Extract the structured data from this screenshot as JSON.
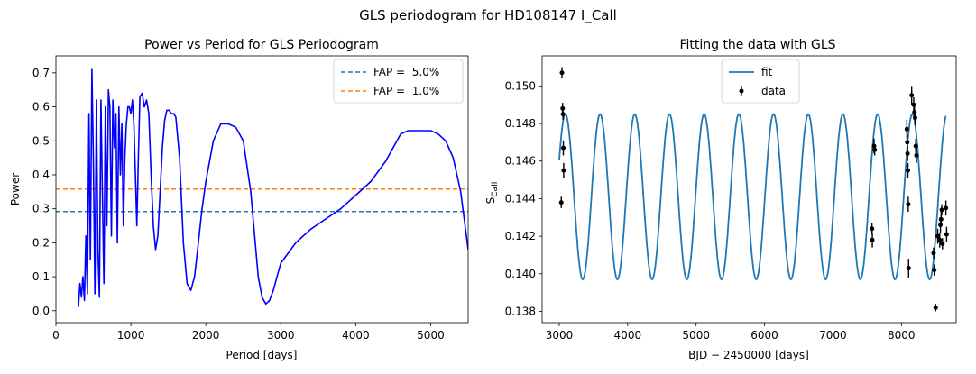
{
  "suptitle": "GLS periodogram for HD108147 I_Call",
  "colors": {
    "power": "#0000ff",
    "fap5": "#1f77b4",
    "fap1": "#ff7f0e",
    "fit": "#1f77b4",
    "data": "#000000"
  },
  "chart_data": [
    {
      "type": "line",
      "title": "Power vs Period for GLS Periodogram",
      "xlabel": "Period [days]",
      "ylabel": "Power",
      "xlim": [
        0,
        5500
      ],
      "ylim": [
        -0.035,
        0.75
      ],
      "xticks": [
        0,
        1000,
        2000,
        3000,
        4000,
        5000
      ],
      "yticks": [
        0.0,
        0.1,
        0.2,
        0.3,
        0.4,
        0.5,
        0.6,
        0.7
      ],
      "legend_position": "top-right",
      "hlines": [
        {
          "name": "FAP =  5.0%",
          "y": 0.292
        },
        {
          "name": "FAP =  1.0%",
          "y": 0.358
        }
      ],
      "series": [
        {
          "x": [
            300,
            320,
            340,
            360,
            380,
            400,
            420,
            440,
            460,
            480,
            500,
            520,
            540,
            560,
            580,
            600,
            620,
            640,
            660,
            680,
            700,
            720,
            740,
            760,
            780,
            800,
            820,
            840,
            860,
            880,
            900,
            920,
            940,
            960,
            980,
            1000,
            1020,
            1040,
            1060,
            1080,
            1100,
            1120,
            1150,
            1180,
            1210,
            1240,
            1270,
            1300,
            1330,
            1360,
            1390,
            1420,
            1450,
            1480,
            1510,
            1540,
            1570,
            1600,
            1650,
            1700,
            1750,
            1800,
            1850,
            1900,
            1950,
            2000,
            2100,
            2200,
            2300,
            2400,
            2500,
            2600,
            2700,
            2750,
            2800,
            2850,
            2900,
            2950,
            3000,
            3200,
            3400,
            3600,
            3800,
            4000,
            4200,
            4400,
            4500,
            4600,
            4700,
            4800,
            4900,
            5000,
            5100,
            5200,
            5300,
            5400,
            5500
          ],
          "y": [
            0.01,
            0.08,
            0.04,
            0.1,
            0.03,
            0.22,
            0.05,
            0.58,
            0.15,
            0.71,
            0.45,
            0.05,
            0.62,
            0.18,
            0.04,
            0.62,
            0.35,
            0.08,
            0.6,
            0.25,
            0.65,
            0.6,
            0.22,
            0.62,
            0.48,
            0.58,
            0.2,
            0.6,
            0.4,
            0.55,
            0.25,
            0.45,
            0.55,
            0.6,
            0.6,
            0.58,
            0.62,
            0.55,
            0.4,
            0.25,
            0.45,
            0.63,
            0.64,
            0.6,
            0.62,
            0.58,
            0.4,
            0.25,
            0.18,
            0.22,
            0.35,
            0.48,
            0.56,
            0.59,
            0.59,
            0.58,
            0.58,
            0.57,
            0.45,
            0.2,
            0.08,
            0.06,
            0.1,
            0.2,
            0.3,
            0.38,
            0.5,
            0.55,
            0.55,
            0.54,
            0.5,
            0.35,
            0.1,
            0.04,
            0.02,
            0.03,
            0.06,
            0.1,
            0.14,
            0.2,
            0.24,
            0.27,
            0.3,
            0.34,
            0.38,
            0.44,
            0.48,
            0.52,
            0.53,
            0.53,
            0.53,
            0.53,
            0.52,
            0.5,
            0.45,
            0.35,
            0.18
          ]
        }
      ]
    },
    {
      "type": "scatter",
      "title": "Fitting the data with GLS",
      "xlabel": "BJD − 2450000 [days]",
      "ylabel_main": "S",
      "ylabel_sub": "CaII",
      "xlim": [
        2750,
        8800
      ],
      "ylim": [
        0.1374,
        0.1516
      ],
      "xticks": [
        3000,
        4000,
        5000,
        6000,
        7000,
        8000
      ],
      "yticks": [
        0.138,
        0.14,
        0.142,
        0.144,
        0.146,
        0.148,
        0.15
      ],
      "legend_position": "top-center",
      "fit": {
        "name": "fit",
        "x_start": 3000,
        "x_end": 8650,
        "mean": 0.1441,
        "amplitude": 0.0044,
        "period": 507,
        "phase_x": 3090
      },
      "data_series": {
        "name": "data",
        "points": [
          {
            "x": 3030,
            "y": 0.1438,
            "e": 0.0003
          },
          {
            "x": 3040,
            "y": 0.1507,
            "e": 0.0003
          },
          {
            "x": 3050,
            "y": 0.1488,
            "e": 0.0003
          },
          {
            "x": 3055,
            "y": 0.1485,
            "e": 0.0003
          },
          {
            "x": 3060,
            "y": 0.1467,
            "e": 0.0004
          },
          {
            "x": 3065,
            "y": 0.1455,
            "e": 0.0004
          },
          {
            "x": 7570,
            "y": 0.1424,
            "e": 0.0003
          },
          {
            "x": 7575,
            "y": 0.1418,
            "e": 0.0004
          },
          {
            "x": 7600,
            "y": 0.1468,
            "e": 0.0004
          },
          {
            "x": 7610,
            "y": 0.1466,
            "e": 0.0003
          },
          {
            "x": 8080,
            "y": 0.1477,
            "e": 0.0005
          },
          {
            "x": 8085,
            "y": 0.147,
            "e": 0.0004
          },
          {
            "x": 8090,
            "y": 0.1464,
            "e": 0.0004
          },
          {
            "x": 8095,
            "y": 0.1455,
            "e": 0.0004
          },
          {
            "x": 8100,
            "y": 0.1437,
            "e": 0.0004
          },
          {
            "x": 8105,
            "y": 0.1403,
            "e": 0.0005
          },
          {
            "x": 8150,
            "y": 0.1495,
            "e": 0.0005
          },
          {
            "x": 8180,
            "y": 0.149,
            "e": 0.0004
          },
          {
            "x": 8190,
            "y": 0.1486,
            "e": 0.0004
          },
          {
            "x": 8200,
            "y": 0.1483,
            "e": 0.0004
          },
          {
            "x": 8210,
            "y": 0.1468,
            "e": 0.0004
          },
          {
            "x": 8220,
            "y": 0.1463,
            "e": 0.0004
          },
          {
            "x": 8470,
            "y": 0.1411,
            "e": 0.0003
          },
          {
            "x": 8480,
            "y": 0.1402,
            "e": 0.0003
          },
          {
            "x": 8500,
            "y": 0.1382,
            "e": 0.0002
          },
          {
            "x": 8530,
            "y": 0.142,
            "e": 0.0004
          },
          {
            "x": 8560,
            "y": 0.1418,
            "e": 0.0004
          },
          {
            "x": 8570,
            "y": 0.1426,
            "e": 0.0004
          },
          {
            "x": 8580,
            "y": 0.1429,
            "e": 0.0004
          },
          {
            "x": 8590,
            "y": 0.1434,
            "e": 0.0003
          },
          {
            "x": 8600,
            "y": 0.1416,
            "e": 0.0003
          },
          {
            "x": 8650,
            "y": 0.1435,
            "e": 0.0004
          },
          {
            "x": 8660,
            "y": 0.1421,
            "e": 0.0004
          }
        ]
      }
    }
  ]
}
